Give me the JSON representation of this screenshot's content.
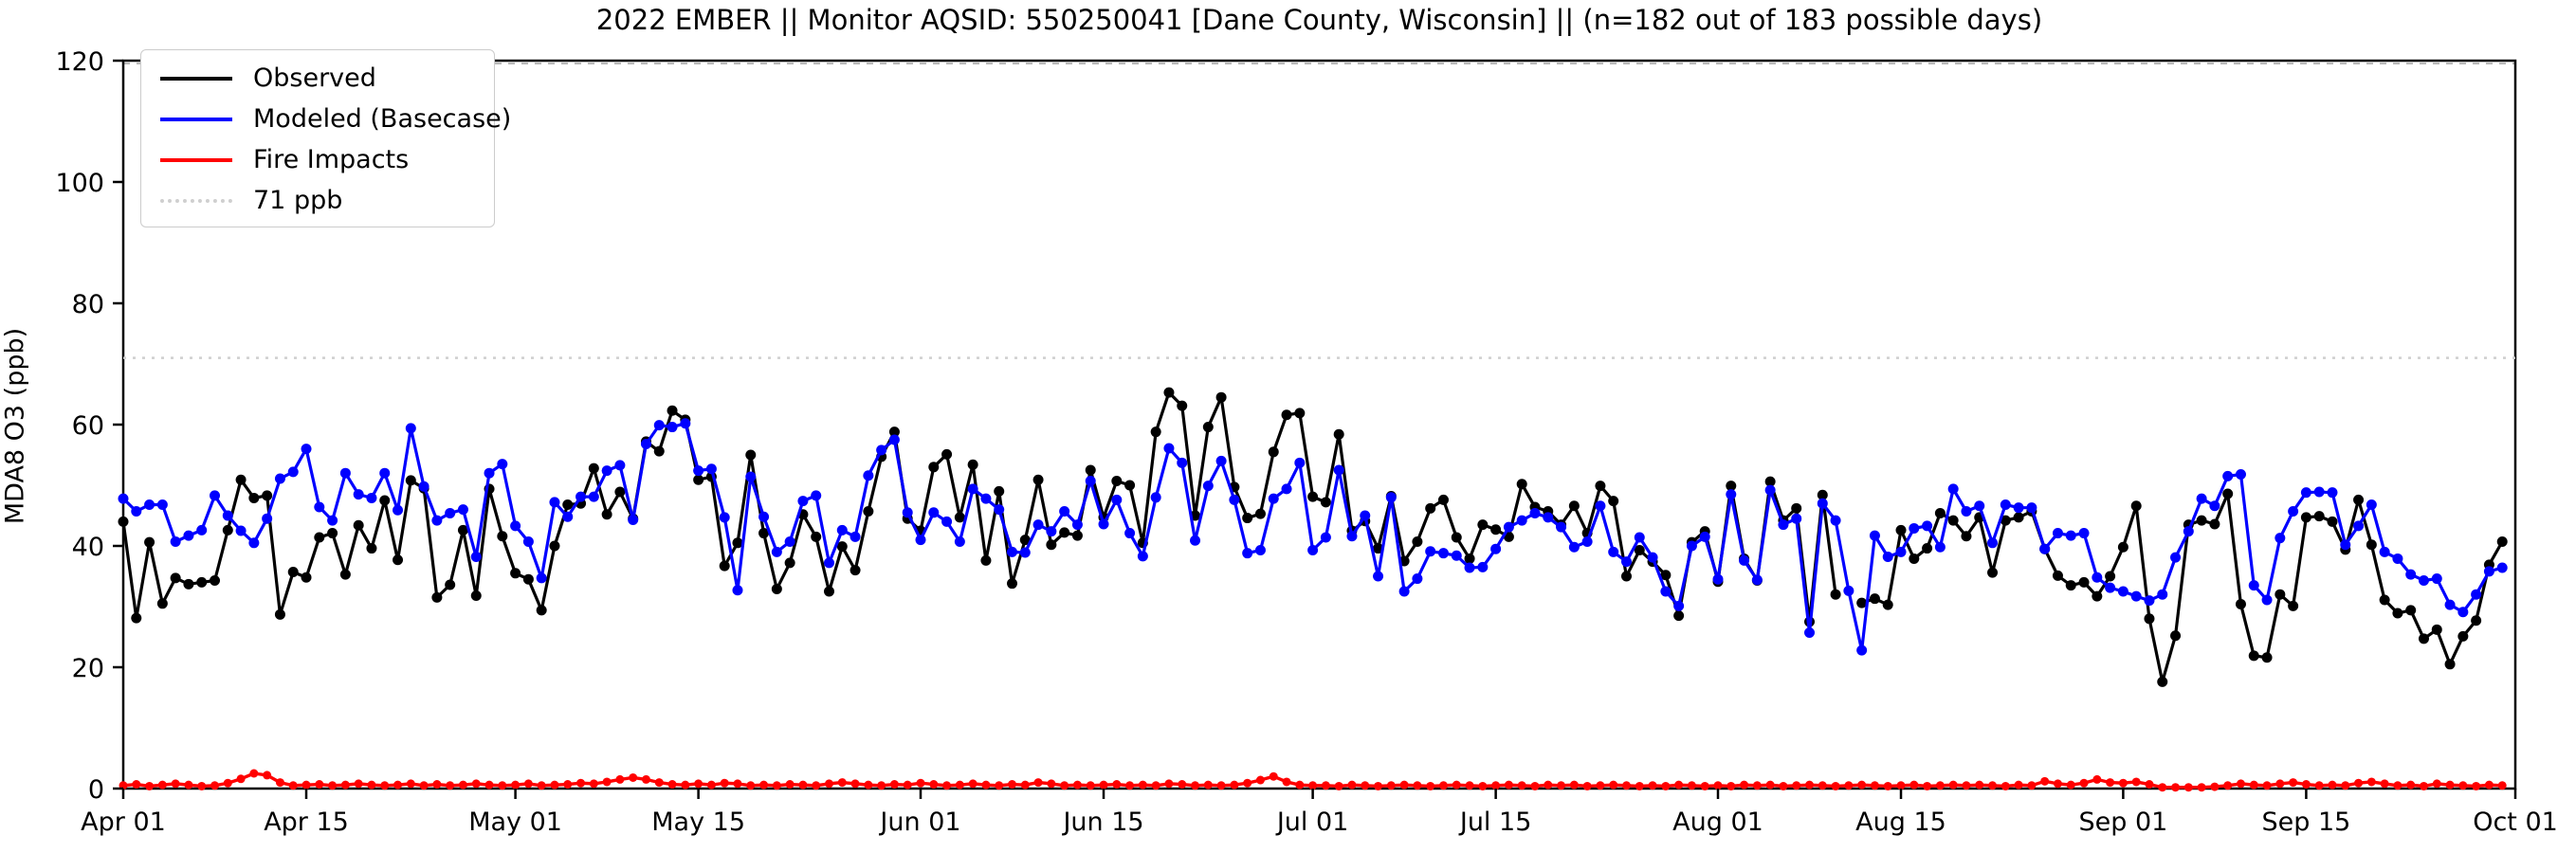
{
  "figure": {
    "title": "2022 EMBER || Monitor AQSID: 550250041 [Dane County, Wisconsin] || (n=182 out of 183 possible days)"
  },
  "axes": {
    "ylabel": "MDA8 O3 (ppb)",
    "y_ticks": [
      0,
      20,
      40,
      60,
      80,
      100,
      120
    ],
    "x_ticks": [
      {
        "label": "Apr 01",
        "day": 0
      },
      {
        "label": "Apr 15",
        "day": 14
      },
      {
        "label": "May 01",
        "day": 30
      },
      {
        "label": "May 15",
        "day": 44
      },
      {
        "label": "Jun 01",
        "day": 61
      },
      {
        "label": "Jun 15",
        "day": 75
      },
      {
        "label": "Jul 01",
        "day": 91
      },
      {
        "label": "Jul 15",
        "day": 105
      },
      {
        "label": "Aug 01",
        "day": 122
      },
      {
        "label": "Aug 15",
        "day": 136
      },
      {
        "label": "Sep 01",
        "day": 153
      },
      {
        "label": "Sep 15",
        "day": 167
      },
      {
        "label": "Oct 01",
        "day": 183
      }
    ]
  },
  "legend": {
    "items": [
      {
        "label": "Observed",
        "color": "#000000",
        "style": "solid"
      },
      {
        "label": "Modeled (Basecase)",
        "color": "#0000ff",
        "style": "solid"
      },
      {
        "label": "Fire Impacts",
        "color": "#ff0000",
        "style": "solid"
      },
      {
        "label": "71 ppb",
        "color": "#cfcfcf",
        "style": "dotted"
      }
    ]
  },
  "chart_data": {
    "type": "line",
    "title": "2022 EMBER || Monitor AQSID: 550250041 [Dane County, Wisconsin] || (n=182 out of 183 possible days)",
    "xlabel": "",
    "ylabel": "MDA8 O3 (ppb)",
    "ylim": [
      0,
      120
    ],
    "x_start_label": "Apr 01",
    "x_end_label": "Oct 01",
    "n_days": 183,
    "grid": false,
    "legend_position": "upper left",
    "threshold": {
      "value": 71,
      "label": "71 ppb",
      "color": "#cfcfcf"
    },
    "series": [
      {
        "name": "Observed",
        "color": "#000000",
        "values": [
          44.0,
          28.1,
          40.6,
          30.5,
          34.7,
          33.7,
          34.0,
          34.3,
          42.6,
          50.9,
          47.9,
          48.3,
          28.7,
          35.7,
          34.8,
          41.4,
          42.1,
          35.3,
          43.4,
          39.6,
          47.5,
          37.7,
          50.8,
          49.5,
          31.5,
          33.6,
          42.6,
          31.8,
          49.4,
          41.6,
          35.5,
          34.5,
          29.4,
          40.0,
          46.8,
          47.0,
          52.8,
          45.2,
          48.9,
          44.5,
          57.2,
          55.6,
          62.3,
          60.8,
          50.9,
          51.4,
          36.7,
          40.5,
          55.0,
          42.1,
          32.9,
          37.2,
          45.2,
          41.5,
          32.5,
          39.9,
          36.0,
          45.7,
          54.7,
          58.8,
          44.5,
          42.5,
          53.0,
          55.1,
          44.7,
          53.4,
          37.6,
          49.0,
          33.8,
          41.0,
          50.9,
          40.2,
          42.2,
          41.7,
          52.5,
          44.7,
          50.7,
          50.0,
          40.5,
          58.8,
          65.3,
          63.1,
          45.0,
          59.6,
          64.5,
          49.7,
          44.6,
          45.3,
          55.5,
          61.6,
          61.9,
          48.1,
          47.2,
          58.4,
          42.5,
          44.1,
          39.6,
          48.2,
          37.5,
          40.7,
          46.2,
          47.6,
          41.4,
          37.9,
          43.5,
          42.7,
          41.5,
          50.2,
          46.4,
          45.7,
          43.5,
          46.6,
          42.1,
          49.9,
          47.4,
          35.0,
          39.3,
          37.4,
          35.2,
          28.5,
          40.6,
          42.4,
          34.1,
          49.9,
          37.9,
          34.3,
          50.6,
          44.2,
          46.2,
          27.5,
          48.4,
          32.0,
          null,
          30.6,
          31.3,
          30.3,
          42.6,
          37.9,
          39.6,
          45.4,
          44.2,
          41.6,
          44.7,
          35.6,
          44.2,
          44.7,
          45.7,
          39.5,
          35.1,
          33.5,
          34.0,
          31.7,
          35.0,
          39.8,
          46.6,
          28.0,
          17.6,
          25.2,
          43.5,
          44.2,
          43.6,
          48.6,
          30.4,
          21.9,
          21.6,
          32.0,
          30.1,
          44.7,
          44.9,
          44.0,
          39.4,
          47.6,
          40.2,
          31.1,
          28.9,
          29.4,
          24.7,
          26.2,
          20.5,
          25.1,
          27.7,
          36.9,
          40.7
        ]
      },
      {
        "name": "Modeled (Basecase)",
        "color": "#0000ff",
        "values": [
          47.8,
          45.7,
          46.8,
          46.8,
          40.7,
          41.7,
          42.6,
          48.3,
          45.0,
          42.5,
          40.5,
          44.5,
          51.1,
          52.2,
          56.0,
          46.4,
          44.2,
          52.0,
          48.5,
          47.9,
          52.0,
          45.9,
          59.4,
          49.8,
          44.2,
          45.4,
          46.0,
          38.2,
          52.0,
          53.5,
          43.3,
          40.7,
          34.7,
          47.2,
          44.8,
          48.1,
          48.1,
          52.4,
          53.3,
          44.3,
          56.8,
          59.9,
          59.6,
          60.2,
          52.4,
          52.7,
          44.7,
          32.7,
          51.4,
          44.8,
          39.0,
          40.7,
          47.4,
          48.3,
          37.2,
          42.6,
          41.5,
          51.6,
          55.8,
          57.5,
          45.5,
          41.0,
          45.5,
          44.0,
          40.7,
          49.4,
          47.8,
          46.0,
          39.0,
          38.9,
          43.5,
          42.4,
          45.7,
          43.5,
          50.7,
          43.6,
          47.6,
          42.1,
          38.3,
          48.0,
          56.1,
          53.7,
          40.9,
          49.9,
          54.0,
          47.6,
          38.8,
          39.3,
          47.8,
          49.4,
          53.7,
          39.3,
          41.4,
          52.5,
          41.6,
          45.0,
          35.0,
          48.0,
          32.5,
          34.6,
          39.1,
          38.8,
          38.4,
          36.4,
          36.5,
          39.5,
          43.1,
          44.2,
          45.4,
          44.7,
          43.1,
          39.8,
          40.7,
          46.6,
          39.0,
          37.4,
          41.4,
          38.1,
          32.5,
          30.1,
          40.0,
          41.5,
          34.5,
          48.5,
          37.6,
          34.4,
          49.2,
          43.5,
          44.5,
          25.7,
          47.0,
          44.2,
          32.6,
          22.8,
          41.7,
          38.2,
          39.0,
          42.9,
          43.3,
          39.8,
          49.4,
          45.7,
          46.6,
          40.5,
          46.8,
          46.3,
          46.3,
          39.5,
          42.1,
          41.7,
          42.1,
          34.8,
          33.1,
          32.5,
          31.7,
          31.0,
          32.0,
          38.1,
          42.4,
          47.8,
          46.6,
          51.5,
          51.8,
          33.5,
          31.1,
          41.3,
          45.7,
          48.8,
          48.9,
          48.8,
          40.2,
          43.3,
          46.8,
          39.0,
          37.9,
          35.3,
          34.3,
          34.6,
          30.3,
          29.1,
          32.0,
          35.8,
          36.4
        ]
      },
      {
        "name": "Fire Impacts",
        "color": "#ff0000",
        "values": [
          0.5,
          0.7,
          0.4,
          0.6,
          0.8,
          0.6,
          0.4,
          0.5,
          0.9,
          1.6,
          2.5,
          2.2,
          1.0,
          0.5,
          0.6,
          0.7,
          0.5,
          0.6,
          0.8,
          0.6,
          0.5,
          0.6,
          0.8,
          0.5,
          0.7,
          0.5,
          0.6,
          0.8,
          0.6,
          0.5,
          0.6,
          0.8,
          0.5,
          0.6,
          0.7,
          0.9,
          0.8,
          1.1,
          1.5,
          1.8,
          1.5,
          1.0,
          0.7,
          0.6,
          0.8,
          0.6,
          0.9,
          0.8,
          0.5,
          0.6,
          0.5,
          0.7,
          0.6,
          0.5,
          0.8,
          1.0,
          0.8,
          0.6,
          0.5,
          0.7,
          0.6,
          0.9,
          0.7,
          0.5,
          0.6,
          0.8,
          0.6,
          0.5,
          0.7,
          0.6,
          1.0,
          0.8,
          0.5,
          0.6,
          0.5,
          0.6,
          0.7,
          0.5,
          0.6,
          0.5,
          0.8,
          0.7,
          0.5,
          0.6,
          0.5,
          0.6,
          0.9,
          1.4,
          2.0,
          1.1,
          0.6,
          0.5,
          0.5,
          0.4,
          0.6,
          0.5,
          0.4,
          0.5,
          0.6,
          0.5,
          0.4,
          0.5,
          0.6,
          0.5,
          0.4,
          0.5,
          0.6,
          0.5,
          0.4,
          0.6,
          0.5,
          0.6,
          0.4,
          0.5,
          0.6,
          0.5,
          0.4,
          0.5,
          0.4,
          0.6,
          0.5,
          0.4,
          0.5,
          0.4,
          0.6,
          0.5,
          0.6,
          0.4,
          0.5,
          0.6,
          0.5,
          0.4,
          0.5,
          0.6,
          0.5,
          0.4,
          0.5,
          0.6,
          0.4,
          0.5,
          0.6,
          0.5,
          0.6,
          0.5,
          0.4,
          0.6,
          0.5,
          1.2,
          0.8,
          0.6,
          0.9,
          1.5,
          1.0,
          0.9,
          1.1,
          0.7,
          0.2,
          0.2,
          0.2,
          0.2,
          0.3,
          0.5,
          0.8,
          0.6,
          0.5,
          0.8,
          1.0,
          0.7,
          0.5,
          0.6,
          0.5,
          0.9,
          1.1,
          0.8,
          0.5,
          0.6,
          0.4,
          0.8,
          0.6,
          0.5,
          0.4,
          0.6,
          0.5
        ]
      }
    ]
  }
}
